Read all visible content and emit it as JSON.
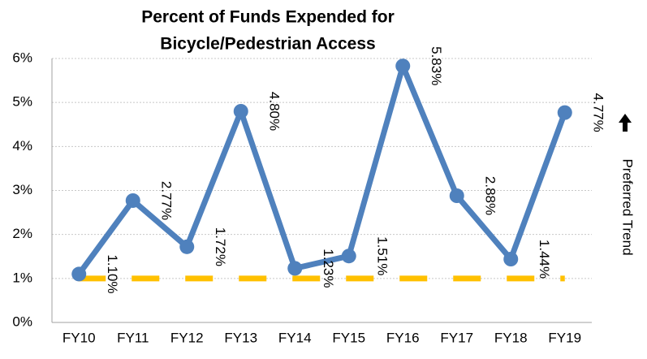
{
  "chart_data": {
    "type": "line",
    "title": [
      "Percent of Funds Expended for",
      "Bicycle/Pedestrian Access"
    ],
    "categories": [
      "FY10",
      "FY11",
      "FY12",
      "FY13",
      "FY14",
      "FY15",
      "FY16",
      "FY17",
      "FY18",
      "FY19"
    ],
    "series": [
      {
        "color": "#4f81bd",
        "values": [
          1.1,
          2.77,
          1.72,
          4.8,
          1.23,
          1.51,
          5.83,
          2.88,
          1.44,
          4.77
        ],
        "value_labels": [
          "1.10%",
          "2.77%",
          "1.72%",
          "4.80%",
          "1.23%",
          "1.51%",
          "5.83%",
          "2.88%",
          "1.44%",
          "4.77%"
        ]
      },
      {
        "color": "#ffc000",
        "dashed": true,
        "values": [
          1,
          1,
          1,
          1,
          1,
          1,
          1,
          1,
          1,
          1
        ]
      }
    ],
    "ylim": [
      0,
      6
    ],
    "yticks": [
      {
        "value": 0,
        "label": "0%"
      },
      {
        "value": 1,
        "label": "1%"
      },
      {
        "value": 2,
        "label": "2%"
      },
      {
        "value": 3,
        "label": "3%"
      },
      {
        "value": 4,
        "label": "4%"
      },
      {
        "value": 5,
        "label": "5%"
      },
      {
        "value": 6,
        "label": "6%"
      }
    ],
    "grid": true,
    "annotation": "Preferred Trend"
  }
}
